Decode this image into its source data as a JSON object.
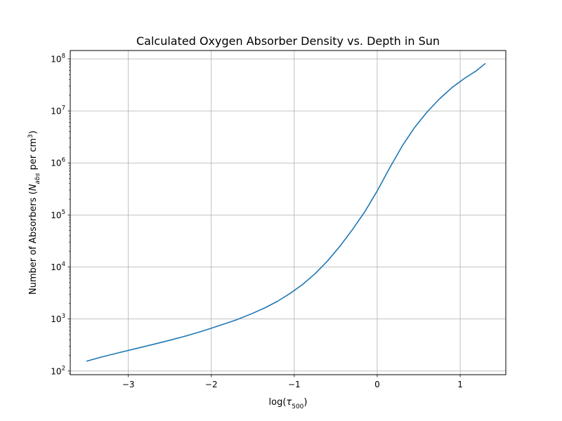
{
  "chart_data": {
    "type": "line",
    "title": "Calculated Oxygen Absorber Density vs. Depth in Sun",
    "xlabel": {
      "prefix": "log(",
      "symbol": "τ",
      "subscript": "500",
      "suffix": ")"
    },
    "ylabel": {
      "prefix": "Number of Absorbers (",
      "symbol": "N",
      "subscript": "abs",
      "middle": " per cm",
      "superscript": "3",
      "suffix": ")"
    },
    "xlim": [
      -3.7,
      1.55
    ],
    "ylim": [
      85,
      145000000
    ],
    "yscale": "log",
    "grid": true,
    "x_ticks": [
      {
        "value": -3,
        "label": "−3"
      },
      {
        "value": -2,
        "label": "−2"
      },
      {
        "value": -1,
        "label": "−1"
      },
      {
        "value": 0,
        "label": "0"
      },
      {
        "value": 1,
        "label": "1"
      }
    ],
    "y_ticks": [
      {
        "value": 100,
        "base": "10",
        "exp": "2"
      },
      {
        "value": 1000,
        "base": "10",
        "exp": "3"
      },
      {
        "value": 10000,
        "base": "10",
        "exp": "4"
      },
      {
        "value": 100000,
        "base": "10",
        "exp": "5"
      },
      {
        "value": 1000000,
        "base": "10",
        "exp": "6"
      },
      {
        "value": 10000000,
        "base": "10",
        "exp": "7"
      },
      {
        "value": 100000000,
        "base": "10",
        "exp": "8"
      }
    ],
    "series": [
      {
        "color": "#1f77b4",
        "x": [
          -3.5,
          -3.3,
          -3.1,
          -2.9,
          -2.7,
          -2.5,
          -2.3,
          -2.1,
          -1.9,
          -1.7,
          -1.5,
          -1.35,
          -1.2,
          -1.05,
          -0.9,
          -0.75,
          -0.6,
          -0.45,
          -0.3,
          -0.15,
          0.0,
          0.15,
          0.3,
          0.45,
          0.6,
          0.75,
          0.9,
          1.05,
          1.2,
          1.3
        ],
        "y": [
          155,
          190,
          228,
          272,
          325,
          390,
          475,
          590,
          750,
          960,
          1290,
          1650,
          2200,
          3100,
          4600,
          7400,
          13000,
          25000,
          52000,
          115000,
          290000,
          800000,
          2100000,
          4800000,
          9500000,
          17000000,
          28000000,
          42000000,
          60000000,
          81000000
        ]
      }
    ]
  }
}
